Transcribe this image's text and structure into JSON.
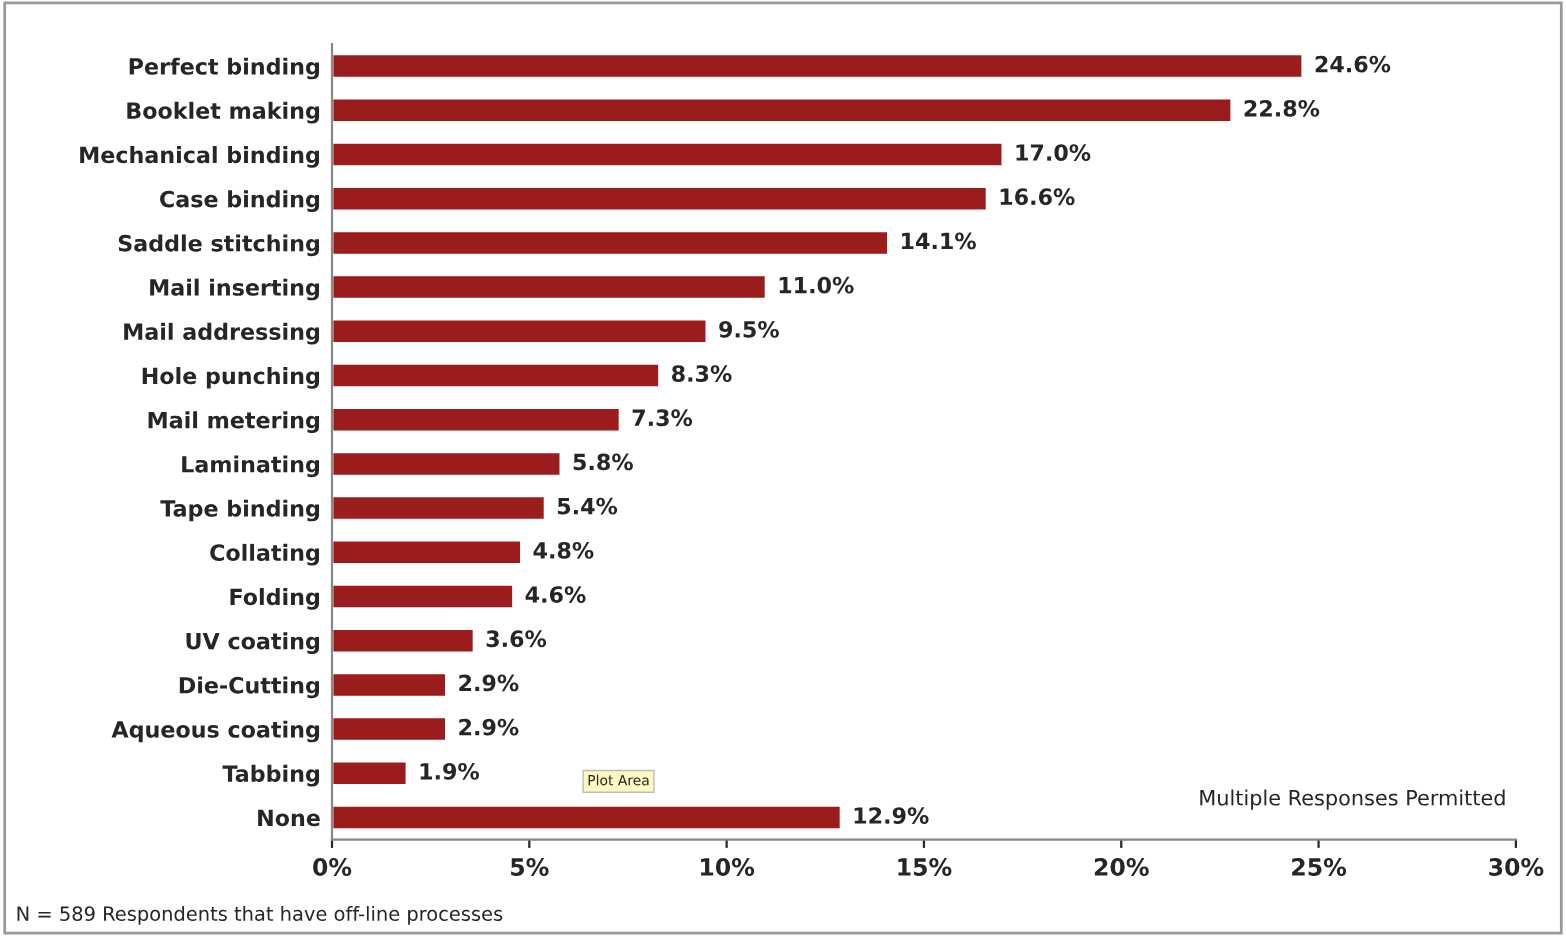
{
  "chart_data": {
    "type": "bar",
    "orientation": "horizontal",
    "categories": [
      "Perfect binding",
      "Booklet making",
      "Mechanical binding",
      "Case binding",
      "Saddle stitching",
      "Mail inserting",
      "Mail addressing",
      "Hole punching",
      "Mail metering",
      "Laminating",
      "Tape binding",
      "Collating",
      "Folding",
      "UV coating",
      "Die-Cutting",
      "Aqueous coating",
      "Tabbing",
      "None"
    ],
    "values": [
      24.6,
      22.8,
      17.0,
      16.6,
      14.1,
      11.0,
      9.5,
      8.3,
      7.3,
      5.8,
      5.4,
      4.8,
      4.6,
      3.6,
      2.9,
      2.9,
      1.9,
      12.9
    ],
    "value_labels": [
      "24.6%",
      "22.8%",
      "17.0%",
      "16.6%",
      "14.1%",
      "11.0%",
      "9.5%",
      "8.3%",
      "7.3%",
      "5.8%",
      "5.4%",
      "4.8%",
      "4.6%",
      "3.6%",
      "2.9%",
      "2.9%",
      "1.9%",
      "12.9%"
    ],
    "color": "#9b1c1c",
    "xlim": [
      0,
      30
    ],
    "xticks": [
      {
        "value": 0,
        "label": "0%"
      },
      {
        "value": 5,
        "label": "5%"
      },
      {
        "value": 10,
        "label": "10%"
      },
      {
        "value": 15,
        "label": "15%"
      },
      {
        "value": 20,
        "label": "20%"
      },
      {
        "value": 25,
        "label": "25%"
      },
      {
        "value": 30,
        "label": "30%"
      }
    ],
    "grid": false,
    "annotations": [
      "Multiple Responses Permitted",
      "N = 589 Respondents that have off-line processes",
      "Plot Area"
    ]
  }
}
